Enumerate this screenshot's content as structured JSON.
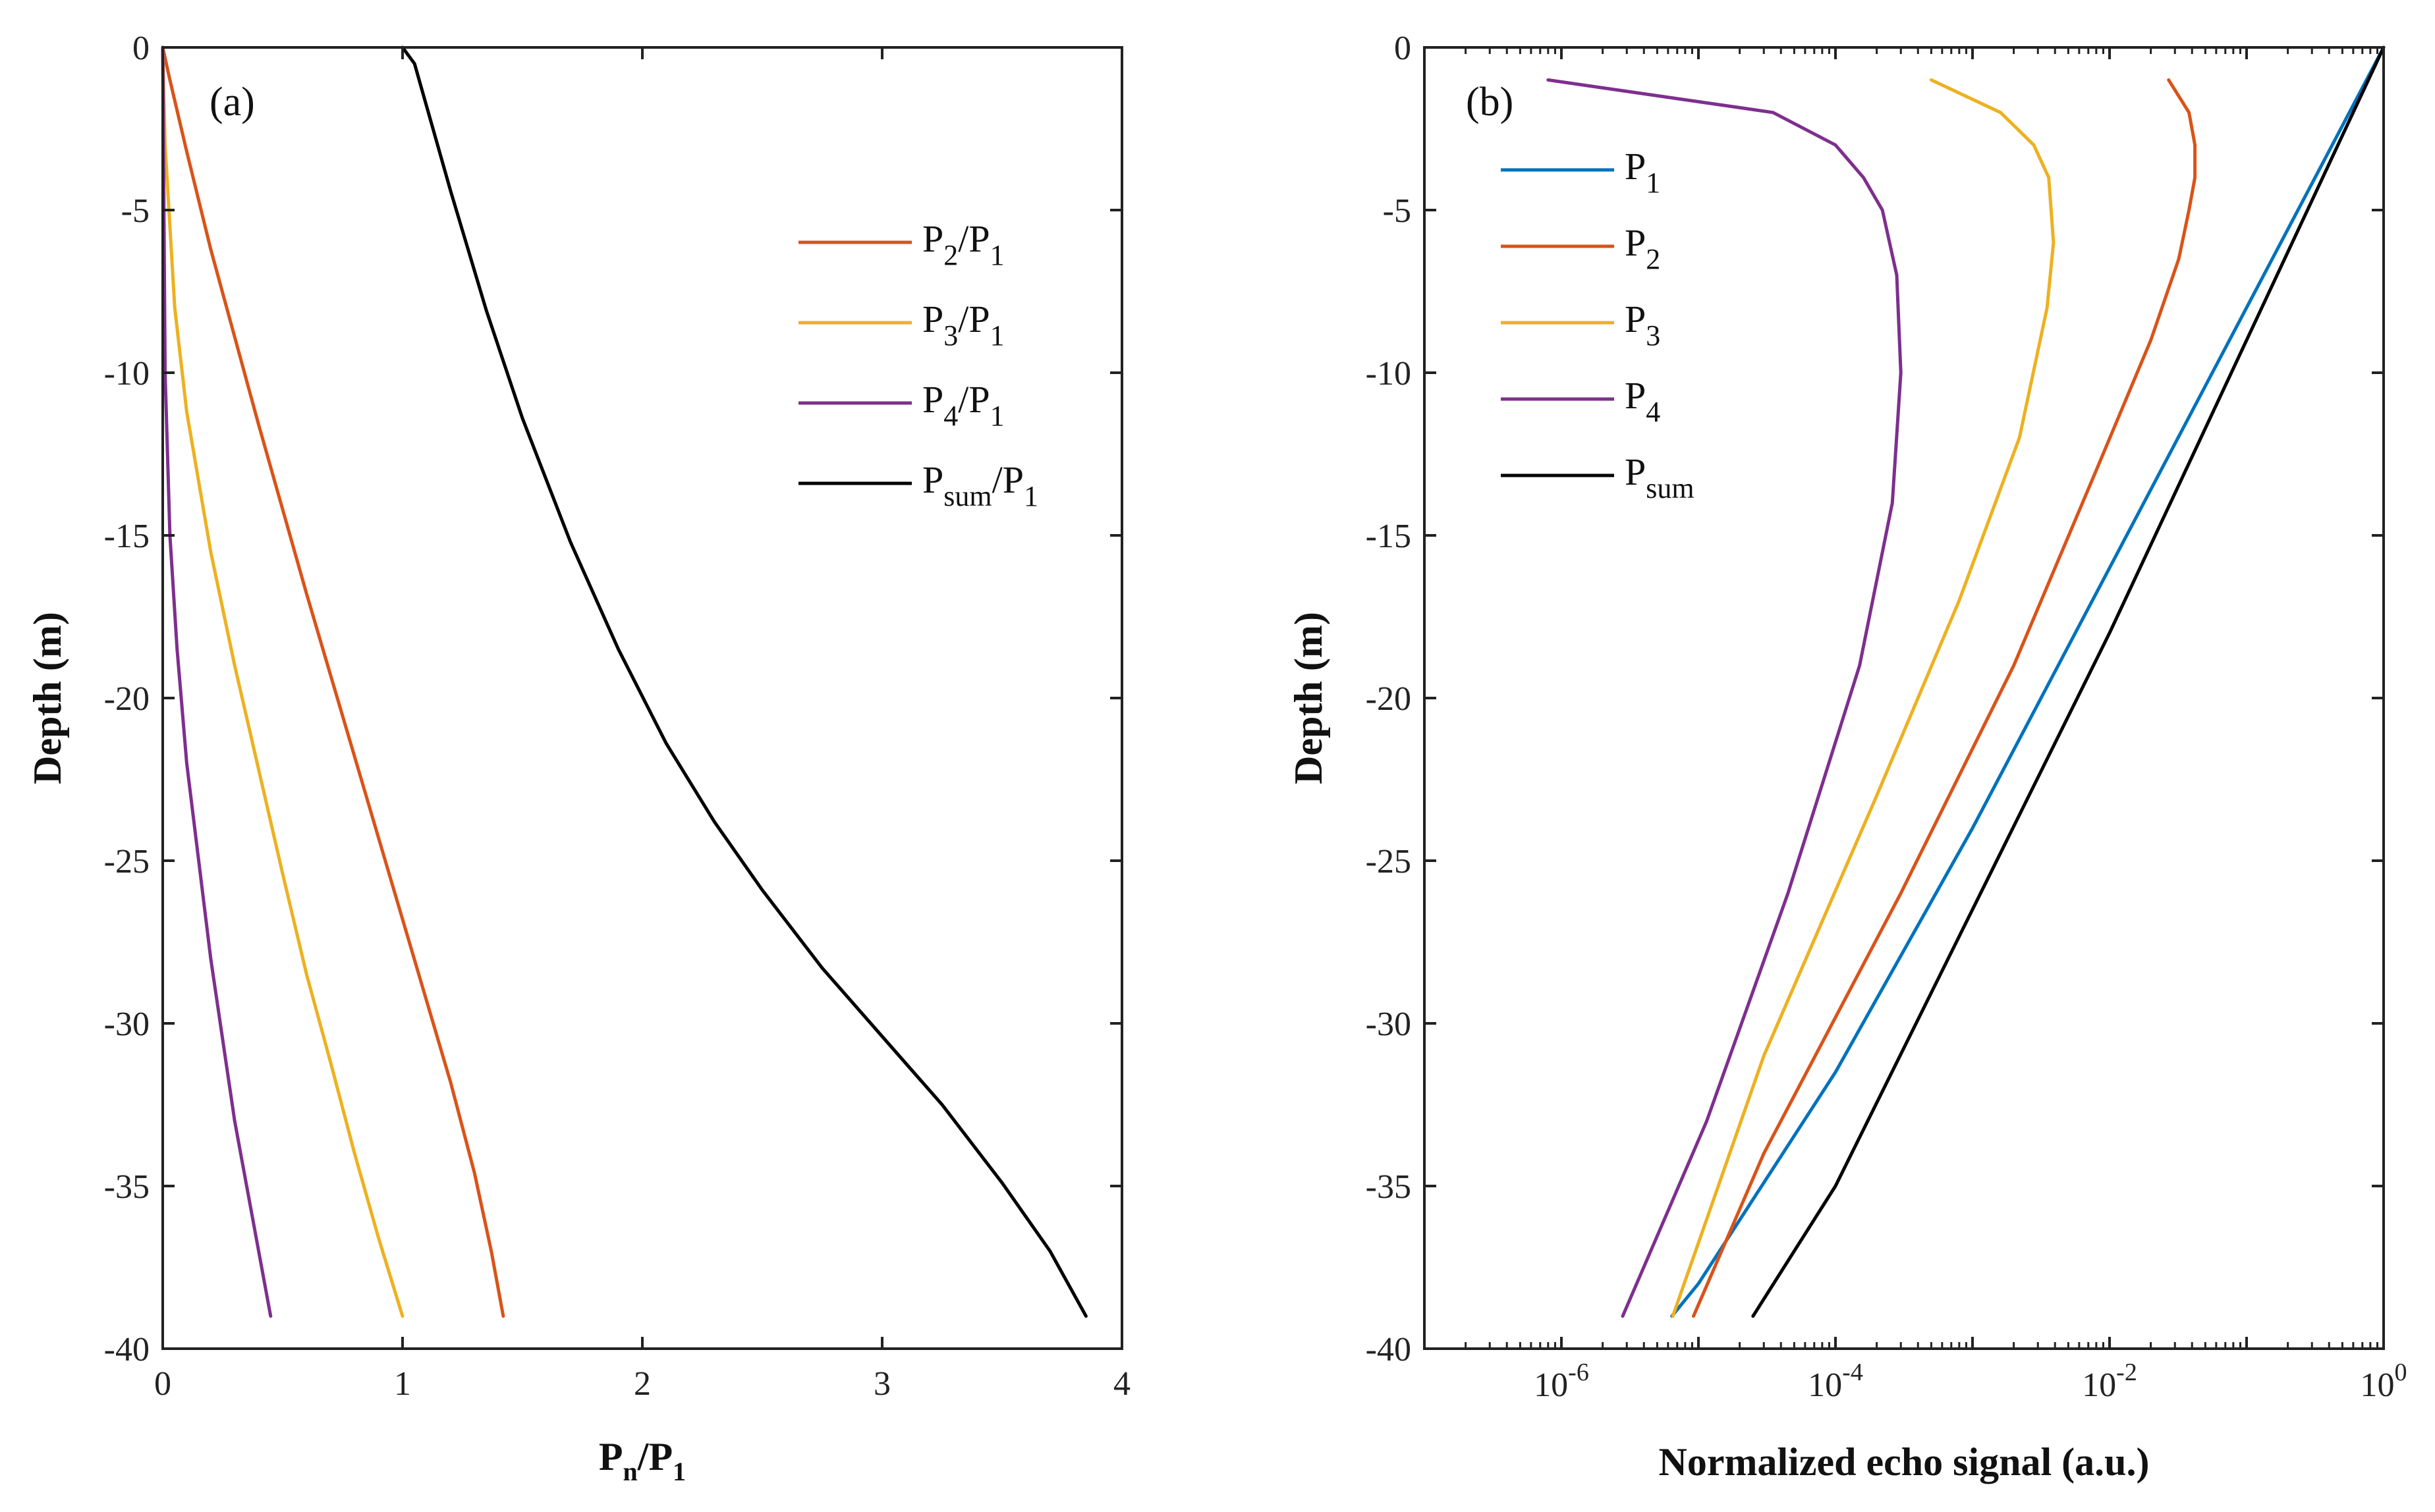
{
  "chart_data": [
    {
      "type": "line",
      "panel_label": "(a)",
      "xlabel": "P_n/P_1",
      "xlabel_main": "P",
      "xlabel_sub": "n",
      "xlabel_slash": "/P",
      "xlabel_sub2": "1",
      "ylabel": "Depth (m)",
      "xlim": [
        0,
        4
      ],
      "ylim": [
        -40,
        0
      ],
      "xscale": "linear",
      "xticks": [
        0,
        1,
        2,
        3,
        4
      ],
      "xtick_labels": [
        "0",
        "1",
        "2",
        "3",
        "4"
      ],
      "yticks": [
        0,
        -5,
        -10,
        -15,
        -20,
        -25,
        -30,
        -35,
        -40
      ],
      "ytick_labels": [
        "0",
        "-5",
        "-10",
        "-15",
        "-20",
        "-25",
        "-30",
        "-35",
        "-40"
      ],
      "legend_position": "top-right",
      "series": [
        {
          "name": "P2/P1",
          "legend_main": "P",
          "legend_sub": "2",
          "legend_rest": "/P",
          "legend_sub2": "1",
          "color": "#D95319",
          "x": [
            0,
            0.03,
            0.1,
            0.2,
            0.3,
            0.4,
            0.5,
            0.6,
            0.7,
            0.8,
            0.9,
            1.0,
            1.1,
            1.2,
            1.3,
            1.37,
            1.42
          ],
          "y": [
            0,
            -1,
            -3.2,
            -6.2,
            -8.9,
            -11.6,
            -14.2,
            -16.8,
            -19.3,
            -21.8,
            -24.3,
            -26.8,
            -29.3,
            -31.8,
            -34.6,
            -37,
            -39
          ]
        },
        {
          "name": "P3/P1",
          "legend_main": "P",
          "legend_sub": "3",
          "legend_rest": "/P",
          "legend_sub2": "1",
          "color": "#EDB120",
          "x": [
            0,
            0.01,
            0.05,
            0.1,
            0.2,
            0.3,
            0.4,
            0.5,
            0.6,
            0.7,
            0.8,
            0.9,
            1.0
          ],
          "y": [
            0,
            -3,
            -8,
            -11.2,
            -15.5,
            -19,
            -22.2,
            -25.4,
            -28.5,
            -31.2,
            -34,
            -36.6,
            -39
          ]
        },
        {
          "name": "P4/P1",
          "legend_main": "P",
          "legend_sub": "4",
          "legend_rest": "/P",
          "legend_sub2": "1",
          "color": "#7E2F8E",
          "x": [
            0,
            0.01,
            0.03,
            0.06,
            0.1,
            0.15,
            0.2,
            0.25,
            0.3,
            0.35,
            0.4,
            0.45
          ],
          "y": [
            0,
            -10,
            -15,
            -18.5,
            -22,
            -25,
            -28,
            -30.5,
            -33,
            -35,
            -37,
            -39
          ]
        },
        {
          "name": "Psum/P1",
          "legend_main": "P",
          "legend_sub": "sum",
          "legend_rest": "/P",
          "legend_sub2": "1",
          "color": "#000000",
          "x": [
            1.0,
            1.05,
            1.2,
            1.35,
            1.5,
            1.7,
            1.9,
            2.1,
            2.3,
            2.5,
            2.75,
            3.0,
            3.25,
            3.5,
            3.7,
            3.85
          ],
          "y": [
            0,
            -0.5,
            -4.4,
            -8.1,
            -11.4,
            -15.2,
            -18.5,
            -21.4,
            -23.8,
            -25.9,
            -28.3,
            -30.4,
            -32.5,
            -34.9,
            -37,
            -39
          ]
        }
      ]
    },
    {
      "type": "line",
      "panel_label": "(b)",
      "xlabel": "Normalized echo signal (a.u.)",
      "ylabel": "Depth (m)",
      "xlim": [
        1e-07,
        1
      ],
      "ylim": [
        -40,
        0
      ],
      "xscale": "log",
      "xticks": [
        -6,
        -4,
        -2,
        0
      ],
      "xtick_base": "10",
      "xtick_exponents": [
        "-6",
        "-4",
        "-2",
        "0"
      ],
      "yticks": [
        0,
        -5,
        -10,
        -15,
        -20,
        -25,
        -30,
        -35,
        -40
      ],
      "ytick_labels": [
        "0",
        "-5",
        "-10",
        "-15",
        "-20",
        "-25",
        "-30",
        "-35",
        "-40"
      ],
      "legend_position": "top-left",
      "series": [
        {
          "name": "P1",
          "legend_main": "P",
          "legend_sub": "1",
          "color": "#0072BD",
          "x": [
            1,
            0.1,
            0.01,
            0.001,
            0.0001,
            1e-05,
            6.4e-06
          ],
          "y": [
            0,
            -8,
            -16,
            -24,
            -31.5,
            -38,
            -39
          ]
        },
        {
          "name": "P2",
          "legend_main": "P",
          "legend_sub": "2",
          "color": "#D95319",
          "x": [
            0.027,
            0.038,
            0.042,
            0.042,
            0.038,
            0.032,
            0.02,
            0.008,
            0.002,
            0.0003,
            3e-05,
            9.2e-06
          ],
          "y": [
            -1,
            -2,
            -3,
            -4,
            -5,
            -6.5,
            -9,
            -13,
            -19,
            -26,
            -34,
            -39
          ]
        },
        {
          "name": "P3",
          "legend_main": "P",
          "legend_sub": "3",
          "color": "#EDB120",
          "x": [
            0.0005,
            0.0016,
            0.0028,
            0.0036,
            0.0039,
            0.0035,
            0.0022,
            0.0008,
            0.0002,
            3e-05,
            6.5e-06
          ],
          "y": [
            -1,
            -2,
            -3,
            -4,
            -6,
            -8,
            -12,
            -17,
            -23,
            -31,
            -39
          ]
        },
        {
          "name": "P4",
          "legend_main": "P",
          "legend_sub": "4",
          "color": "#7E2F8E",
          "x": [
            8e-07,
            3.5e-05,
            0.0001,
            0.00016,
            0.00022,
            0.00028,
            0.0003,
            0.00026,
            0.00015,
            4.5e-05,
            1.15e-05,
            2.8e-06
          ],
          "y": [
            -1,
            -2,
            -3,
            -4,
            -5,
            -7,
            -10,
            -14,
            -19,
            -26,
            -33,
            -39
          ]
        },
        {
          "name": "Psum",
          "legend_main": "P",
          "legend_sub": "sum",
          "color": "#000000",
          "x": [
            1,
            0.1,
            0.01,
            0.001,
            0.0001,
            2.5e-05
          ],
          "y": [
            0,
            -9,
            -18,
            -26.5,
            -35,
            -39
          ]
        }
      ]
    }
  ]
}
